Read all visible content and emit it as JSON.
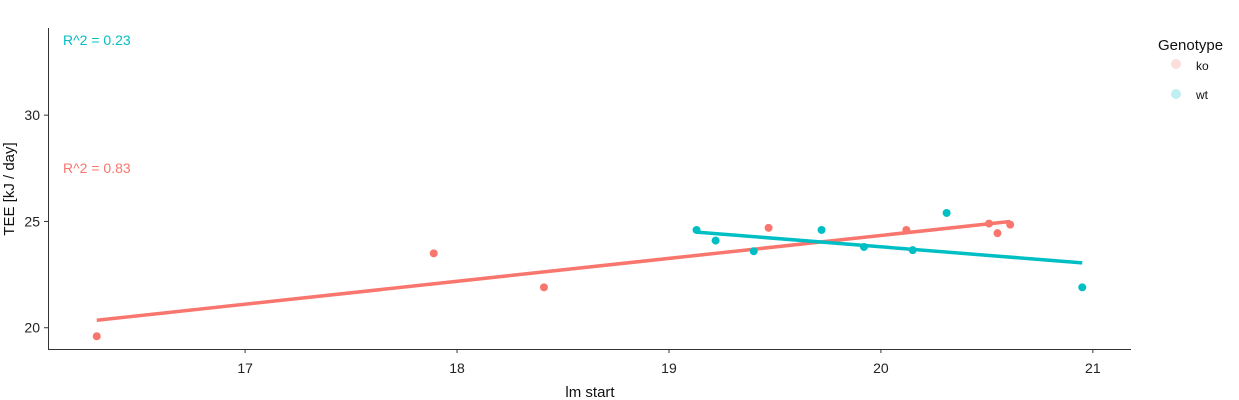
{
  "chart_data": {
    "type": "scatter",
    "xlabel": "lm start",
    "ylabel": "TEE [kJ / day]",
    "xlim": [
      16.07,
      21.18
    ],
    "ylim": [
      19.0,
      34.1
    ],
    "x_ticks": [
      17,
      18,
      19,
      20,
      21
    ],
    "y_ticks": [
      20,
      25,
      30
    ],
    "grid": false,
    "legend": {
      "title": "Genotype",
      "position": "top-right",
      "entries": [
        "ko",
        "wt"
      ]
    },
    "series": [
      {
        "name": "ko",
        "color": "#F8766D",
        "x": [
          16.3,
          17.89,
          18.41,
          19.47,
          20.12,
          20.51,
          20.55,
          20.61
        ],
        "y": [
          19.6,
          23.5,
          21.9,
          24.7,
          24.6,
          24.9,
          24.45,
          24.85
        ],
        "fit": {
          "x": [
            16.3,
            20.61
          ],
          "y": [
            20.35,
            25.0
          ]
        },
        "r2_label": "R^2 = 0.83"
      },
      {
        "name": "wt",
        "color": "#00BFC4",
        "x": [
          19.13,
          19.22,
          19.4,
          19.72,
          19.92,
          20.15,
          20.31,
          20.95
        ],
        "y": [
          24.6,
          24.1,
          23.6,
          24.6,
          23.8,
          23.65,
          25.4,
          21.9
        ],
        "fit": {
          "x": [
            19.13,
            20.95
          ],
          "y": [
            24.5,
            23.05
          ]
        },
        "r2_label": "R^2 = 0.23"
      }
    ]
  }
}
